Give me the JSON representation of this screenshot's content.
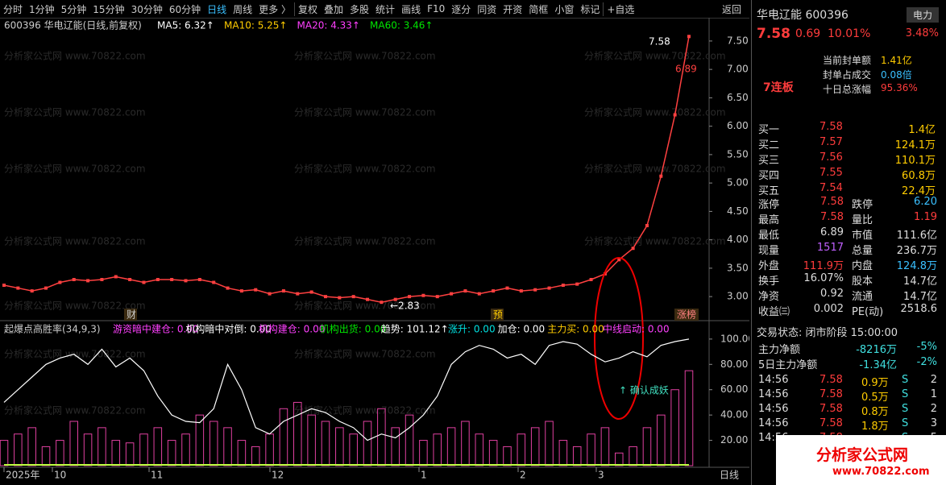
{
  "toolbar": {
    "items": [
      "分时",
      "1分钟",
      "5分钟",
      "15分钟",
      "30分钟",
      "60分钟",
      "日线",
      "周线",
      "更多 〉",
      "复权",
      "叠加",
      "多股",
      "统计",
      "画线",
      "F10",
      "逐分",
      "同资",
      "开资",
      "简框",
      "小窗",
      "标记",
      "+自选"
    ],
    "back": "返回"
  },
  "watermark": "分析家公式网 www.70822.com",
  "price_chart": {
    "type": "line",
    "title": "600396 华电辽能(日线,前复权)",
    "ma_labels": [
      {
        "text": "MA5: 6.32↑",
        "color": "#ffffff"
      },
      {
        "text": "MA10: 5.25↑",
        "color": "#ffcc00"
      },
      {
        "text": "MA20: 4.33↑",
        "color": "#ff40ff"
      },
      {
        "text": "MA60: 3.46↑",
        "color": "#00e600"
      }
    ],
    "ylim": [
      2.69,
      7.91
    ],
    "yticks": [
      {
        "value": 3,
        "label": "3.00"
      },
      {
        "value": 3.5,
        "label": "3.50"
      },
      {
        "value": 4,
        "label": "4.00"
      },
      {
        "value": 4.5,
        "label": "4.50"
      },
      {
        "value": 5,
        "label": "5.00"
      },
      {
        "value": 5.5,
        "label": "5.50"
      },
      {
        "value": 6,
        "label": "6.00"
      },
      {
        "value": 6.5,
        "label": "6.50"
      },
      {
        "value": 7,
        "label": "7.00"
      },
      {
        "value": 7.5,
        "label": "7.50"
      }
    ],
    "values": [
      3.2,
      3.15,
      3.1,
      3.15,
      3.25,
      3.3,
      3.28,
      3.3,
      3.35,
      3.3,
      3.25,
      3.3,
      3.3,
      3.28,
      3.3,
      3.25,
      3.15,
      3.1,
      3.12,
      3.05,
      3.1,
      3.05,
      3.08,
      3.0,
      2.98,
      3.0,
      2.95,
      2.9,
      2.95,
      3.0,
      3.02,
      3.0,
      3.05,
      3.1,
      3.05,
      3.1,
      3.15,
      3.1,
      3.12,
      3.15,
      3.2,
      3.22,
      3.3,
      3.4,
      3.65,
      3.85,
      4.25,
      5.12,
      6.2,
      7.58
    ],
    "color": "#ff4040",
    "annotations": [
      "7.58",
      "6.89",
      "←2.83"
    ],
    "markers": [
      "财",
      "预",
      "涨榜"
    ]
  },
  "indicator": {
    "type": "bar",
    "title": "起爆点高胜率(34,9,3)",
    "labels": [
      {
        "text": "游资暗中建仓: 0.00",
        "color": "#ff40ff"
      },
      {
        "text": "机构暗中对倒: 0.00",
        "color": "#ffffff"
      },
      {
        "text": "机构建仓: 0.00",
        "color": "#ff40ff"
      },
      {
        "text": "机构出货: 0.00",
        "color": "#00e600"
      },
      {
        "text": "趋势: 101.12↑",
        "color": "#ffffff"
      },
      {
        "text": "涨升: 0.00",
        "color": "#00e0e0"
      },
      {
        "text": "加仓: 0.00",
        "color": "#ffffff"
      },
      {
        "text": "主力买: 0.00",
        "color": "#ffcc00"
      },
      {
        "text": "中线启动: 0.00",
        "color": "#ff40ff"
      }
    ],
    "ylim": [
      0,
      112
    ],
    "yticks": [
      {
        "value": 20,
        "label": "20.00"
      },
      {
        "value": 40,
        "label": "40.00"
      },
      {
        "value": 60,
        "label": "60.00"
      },
      {
        "value": 80,
        "label": "80.00"
      },
      {
        "value": 100,
        "label": "100.00"
      }
    ],
    "trend": [
      50,
      60,
      70,
      80,
      85,
      88,
      80,
      92,
      78,
      85,
      75,
      55,
      40,
      35,
      34,
      45,
      80,
      60,
      30,
      25,
      35,
      40,
      45,
      42,
      35,
      30,
      20,
      25,
      22,
      30,
      40,
      55,
      80,
      90,
      95,
      92,
      85,
      88,
      80,
      95,
      98,
      96,
      88,
      82,
      85,
      90,
      86,
      95,
      98,
      100
    ],
    "trend_color": "#ffffff",
    "bars": [
      20,
      25,
      30,
      15,
      20,
      35,
      25,
      30,
      20,
      18,
      25,
      30,
      20,
      25,
      40,
      35,
      30,
      20,
      15,
      25,
      45,
      50,
      40,
      35,
      30,
      25,
      35,
      45,
      30,
      40,
      20,
      25,
      30,
      35,
      25,
      20,
      15,
      25,
      30,
      35,
      20,
      15,
      25,
      30,
      10,
      15,
      30,
      40,
      60,
      75
    ],
    "bar_color": "#e040a0",
    "annotation": "↑ 确认成妖"
  },
  "x_axis": {
    "labels": [
      "2025年",
      "10",
      "11",
      "12",
      "1",
      "2",
      "3"
    ],
    "period": "日线"
  },
  "quote": {
    "name": "华电辽能 600396",
    "sector": "电力",
    "price": "7.58",
    "change": "0.69",
    "pct": "10.01%",
    "sector_pct": "3.48%",
    "seal": [
      [
        "当前封单额",
        "1.41亿"
      ],
      [
        "封单占成交",
        "0.08倍"
      ],
      [
        "十日总涨幅",
        "95.36%"
      ]
    ],
    "streak": "7连板",
    "book": [
      [
        "买一",
        "7.58",
        "1.4亿"
      ],
      [
        "买二",
        "7.57",
        "124.1万"
      ],
      [
        "买三",
        "7.56",
        "110.1万"
      ],
      [
        "买四",
        "7.55",
        "60.8万"
      ],
      [
        "买五",
        "7.54",
        "22.4万"
      ]
    ],
    "stats": [
      [
        "涨停",
        "7.58",
        "跌停",
        "6.20"
      ],
      [
        "最高",
        "7.58",
        "量比",
        "1.19"
      ],
      [
        "最低",
        "6.89",
        "市值",
        "111.6亿"
      ],
      [
        "现量",
        "1517",
        "总量",
        "236.7万"
      ],
      [
        "外盘",
        "111.9万",
        "内盘",
        "124.8万"
      ],
      [
        "换手",
        "16.07%",
        "股本",
        "14.7亿"
      ],
      [
        "净资",
        "0.92",
        "流通",
        "14.7亿"
      ],
      [
        "收益㈢",
        "0.002",
        "PE(动)",
        "2518.6"
      ]
    ],
    "status": "交易状态: 闭市阶段 15:00:00",
    "flow": [
      [
        "主力净额",
        "-8216万",
        "-5%"
      ],
      [
        "5日主力净额",
        "-1.34亿",
        "-2%"
      ]
    ],
    "trades": [
      [
        "14:56",
        "7.58",
        "0.9万",
        "S",
        "2"
      ],
      [
        "14:56",
        "7.58",
        "0.5万",
        "S",
        "1"
      ],
      [
        "14:56",
        "7.58",
        "0.8万",
        "S",
        "2"
      ],
      [
        "14:56",
        "7.58",
        "1.8万",
        "S",
        "3"
      ],
      [
        "14:56",
        "7.58",
        "1.7万",
        "S",
        "5"
      ]
    ],
    "logo": "分析家公式网",
    "logo_url": "www.70822.com"
  }
}
